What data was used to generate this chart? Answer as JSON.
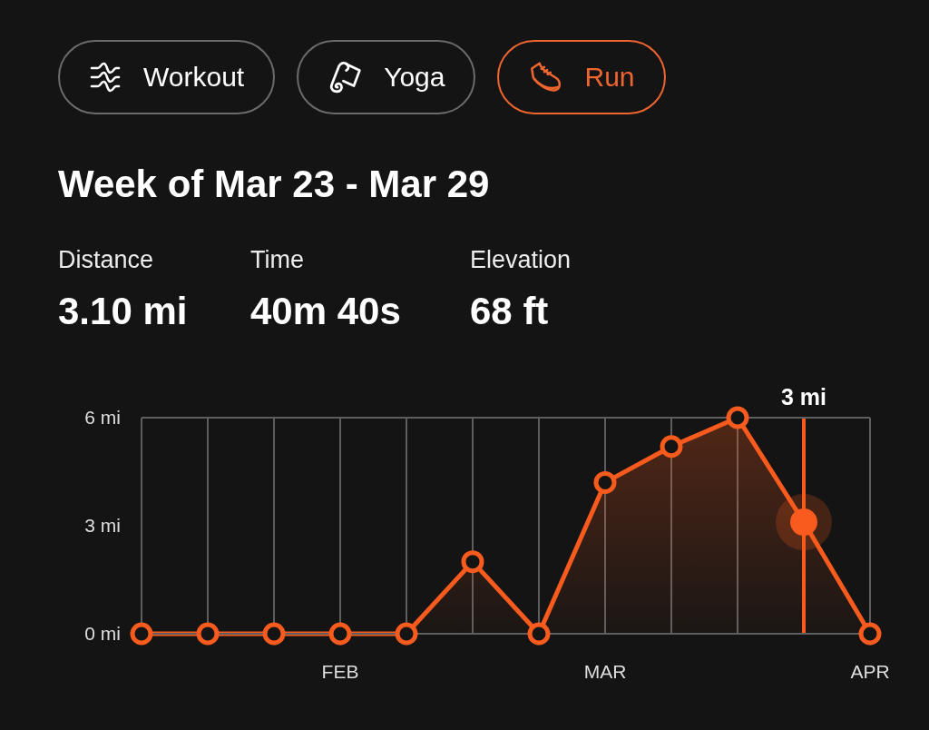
{
  "chart_data": [
    {
      "type": "other",
      "categories": [
        "Workout",
        "Yoga",
        "Run"
      ],
      "colors": [
        "#6b6b6b",
        "#6b6b6b",
        "#ef6530"
      ]
    },
    {
      "type": "area",
      "title": "Week of Mar 23 - Mar 29",
      "annotations": [
        "Distance",
        "3.10 mi",
        "Time",
        "40m 40s",
        "Elevation",
        "68 ft"
      ],
      "x": [
        "--01-15",
        "--01-22",
        "--01-29",
        "--02-05",
        "--02-12",
        "--02-19",
        "--02-26",
        "--03-05",
        "--03-12",
        "--03-19",
        "--03-26",
        "--04-02"
      ],
      "values": [
        0,
        0,
        0,
        0,
        0,
        2,
        0,
        4.2,
        5.2,
        6,
        3.1,
        0
      ],
      "color": "#f85b1d",
      "xlim": [
        "--01-15",
        "--04-02"
      ],
      "xticks": [
        {
          "value": "--01-15",
          "label": null
        },
        {
          "value": "--01-22",
          "label": null
        },
        {
          "value": "--01-29",
          "label": null
        },
        {
          "value": "--02-05",
          "label": "FEB"
        },
        {
          "value": "--02-12",
          "label": null
        },
        {
          "value": "--02-19",
          "label": null
        },
        {
          "value": "--02-26",
          "label": null
        },
        {
          "value": "--03-05",
          "label": "MAR"
        },
        {
          "value": "--03-12",
          "label": null
        },
        {
          "value": "--03-19",
          "label": null
        },
        {
          "value": "--03-26",
          "label": null
        },
        {
          "value": "--04-02",
          "label": "APR"
        }
      ],
      "ylim": [
        0,
        6
      ],
      "yticks": [
        {
          "value": 0,
          "label": "0 mi"
        },
        {
          "value": 3,
          "label": "3 mi"
        },
        {
          "value": 6,
          "label": "6 mi"
        }
      ],
      "grid": "x",
      "marker": "circle",
      "line_style": "solid",
      "ref_lines": [
        {
          "axis": "x",
          "value": "--03-26",
          "label": "3 mi",
          "color": "#f85b1d"
        }
      ]
    }
  ]
}
